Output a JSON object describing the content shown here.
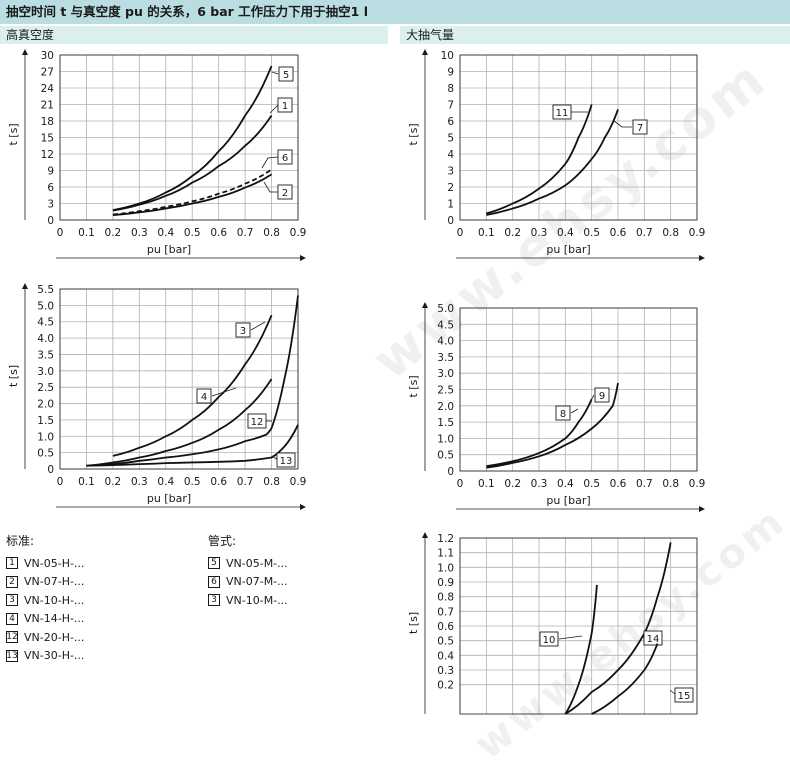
{
  "title": "抽空时间 t 与真空度 pu 的关系，6 bar 工作压力下用于抽空1 l",
  "sections": {
    "left": "高真空度",
    "right": "大抽气量"
  },
  "legend": {
    "standard": {
      "header": "标准:",
      "items": [
        {
          "id": "1",
          "label": "VN-05-H-..."
        },
        {
          "id": "2",
          "label": "VN-07-H-..."
        },
        {
          "id": "3",
          "label": "VN-10-H-..."
        },
        {
          "id": "4",
          "label": "VN-14-H-..."
        },
        {
          "id": "12",
          "label": "VN-20-H-..."
        },
        {
          "id": "13",
          "label": "VN-30-H-..."
        }
      ]
    },
    "pipe": {
      "header": "管式:",
      "items": [
        {
          "id": "5",
          "label": "VN-05-M-..."
        },
        {
          "id": "6",
          "label": "VN-07-M-..."
        },
        {
          "id": "3",
          "label": "VN-10-M-..."
        }
      ]
    }
  },
  "watermark": "www.ehsy.com",
  "chart_data": [
    {
      "type": "line",
      "xlabel": "pu [bar]",
      "ylabel": "t [s]",
      "xlim": [
        0,
        0.9
      ],
      "ylim": [
        0,
        30
      ],
      "xticks": [
        "0",
        "0.1",
        "0.2",
        "0.3",
        "0.4",
        "0.5",
        "0.6",
        "0.7",
        "0.8",
        "0.9"
      ],
      "yticks": [
        "0",
        "3",
        "6",
        "9",
        "12",
        "15",
        "18",
        "21",
        "24",
        "27",
        "30"
      ],
      "series": [
        {
          "name": "5",
          "x": [
            0.2,
            0.3,
            0.4,
            0.5,
            0.6,
            0.7,
            0.8
          ],
          "y": [
            1.8,
            3.0,
            5.0,
            8.0,
            12.5,
            19.0,
            28.0
          ]
        },
        {
          "name": "1",
          "x": [
            0.2,
            0.3,
            0.4,
            0.5,
            0.6,
            0.7,
            0.8
          ],
          "y": [
            1.7,
            2.8,
            4.4,
            6.8,
            9.8,
            13.5,
            19.0
          ]
        },
        {
          "name": "6",
          "x": [
            0.2,
            0.3,
            0.4,
            0.5,
            0.6,
            0.7,
            0.8
          ],
          "y": [
            1.0,
            1.6,
            2.4,
            3.4,
            4.8,
            6.6,
            9.2
          ],
          "dashed": true
        },
        {
          "name": "2",
          "x": [
            0.2,
            0.3,
            0.4,
            0.5,
            0.6,
            0.7,
            0.8
          ],
          "y": [
            0.9,
            1.4,
            2.1,
            3.0,
            4.2,
            5.9,
            8.3
          ]
        }
      ]
    },
    {
      "type": "line",
      "xlabel": "pu [bar]",
      "ylabel": "t [s]",
      "xlim": [
        0,
        0.9
      ],
      "ylim": [
        0,
        10
      ],
      "xticks": [
        "0",
        "0.1",
        "0.2",
        "0.3",
        "0.4",
        "0.5",
        "0.6",
        "0.7",
        "0.8",
        "0.9"
      ],
      "yticks": [
        "0",
        "1",
        "2",
        "3",
        "4",
        "5",
        "6",
        "7",
        "8",
        "9",
        "10"
      ],
      "series": [
        {
          "name": "11",
          "x": [
            0.1,
            0.2,
            0.3,
            0.4,
            0.45,
            0.5
          ],
          "y": [
            0.4,
            1.0,
            1.9,
            3.4,
            5.0,
            7.0
          ]
        },
        {
          "name": "7",
          "x": [
            0.1,
            0.2,
            0.3,
            0.4,
            0.5,
            0.55,
            0.6
          ],
          "y": [
            0.3,
            0.7,
            1.3,
            2.1,
            3.7,
            5.0,
            6.7
          ]
        }
      ]
    },
    {
      "type": "line",
      "xlabel": "pu [bar]",
      "ylabel": "t [s]",
      "xlim": [
        0,
        0.9
      ],
      "ylim": [
        0,
        5.5
      ],
      "xticks": [
        "0",
        "0.1",
        "0.2",
        "0.3",
        "0.4",
        "0.5",
        "0.6",
        "0.7",
        "0.8",
        "0.9"
      ],
      "yticks": [
        "0",
        "0.5",
        "1.0",
        "1.5",
        "2.0",
        "2.5",
        "3.0",
        "3.5",
        "4.0",
        "4.5",
        "5.0",
        "5.5"
      ],
      "series": [
        {
          "name": "3",
          "x": [
            0.2,
            0.3,
            0.4,
            0.5,
            0.6,
            0.7,
            0.8
          ],
          "y": [
            0.4,
            0.65,
            1.0,
            1.5,
            2.2,
            3.2,
            4.7
          ]
        },
        {
          "name": "4",
          "x": [
            0.1,
            0.2,
            0.3,
            0.4,
            0.5,
            0.6,
            0.7,
            0.8
          ],
          "y": [
            0.1,
            0.2,
            0.35,
            0.55,
            0.8,
            1.2,
            1.8,
            2.75
          ]
        },
        {
          "name": "12",
          "x": [
            0.1,
            0.2,
            0.3,
            0.4,
            0.5,
            0.6,
            0.7,
            0.78,
            0.8,
            0.85,
            0.9
          ],
          "y": [
            0.1,
            0.15,
            0.25,
            0.35,
            0.45,
            0.6,
            0.85,
            1.05,
            1.25,
            2.8,
            5.3
          ]
        },
        {
          "name": "13",
          "x": [
            0.1,
            0.2,
            0.3,
            0.4,
            0.5,
            0.6,
            0.7,
            0.8,
            0.85,
            0.9
          ],
          "y": [
            0.1,
            0.12,
            0.15,
            0.18,
            0.2,
            0.22,
            0.25,
            0.35,
            0.7,
            1.35
          ]
        }
      ]
    },
    {
      "type": "line",
      "xlabel": "pu [bar]",
      "ylabel": "t [s]",
      "xlim": [
        0,
        0.9
      ],
      "ylim": [
        0,
        5.0
      ],
      "xticks": [
        "0",
        "0.1",
        "0.2",
        "0.3",
        "0.4",
        "0.5",
        "0.6",
        "0.7",
        "0.8",
        "0.9"
      ],
      "yticks": [
        "0",
        "0.5",
        "1.0",
        "1.5",
        "2.0",
        "2.5",
        "3.0",
        "3.5",
        "4.0",
        "4.5",
        "5.0"
      ],
      "series": [
        {
          "name": "8",
          "x": [
            0.1,
            0.2,
            0.3,
            0.4,
            0.45,
            0.5
          ],
          "y": [
            0.15,
            0.3,
            0.55,
            1.0,
            1.5,
            2.2
          ]
        },
        {
          "name": "9",
          "x": [
            0.1,
            0.2,
            0.3,
            0.4,
            0.5,
            0.58,
            0.6
          ],
          "y": [
            0.1,
            0.25,
            0.45,
            0.8,
            1.3,
            2.0,
            2.7
          ]
        }
      ]
    },
    {
      "type": "line",
      "ylabel": "t [s]",
      "xlim": [
        0,
        0.9
      ],
      "ylim": [
        0,
        1.2
      ],
      "yticks": [
        "0.2",
        "0.3",
        "0.4",
        "0.5",
        "0.6",
        "0.7",
        "0.8",
        "0.9",
        "1.0",
        "1.1",
        "1.2"
      ],
      "series": [
        {
          "name": "10",
          "x": [
            0.4,
            0.45,
            0.5,
            0.52
          ],
          "y": [
            0.0,
            0.2,
            0.55,
            0.88
          ]
        },
        {
          "name": "14",
          "x": [
            0.4,
            0.5,
            0.6,
            0.7,
            0.75,
            0.8
          ],
          "y": [
            0.0,
            0.15,
            0.3,
            0.55,
            0.8,
            1.17
          ]
        },
        {
          "name": "15",
          "x": [
            0.5,
            0.6,
            0.7,
            0.75
          ],
          "y": [
            0.0,
            0.12,
            0.3,
            0.48
          ]
        }
      ]
    }
  ]
}
